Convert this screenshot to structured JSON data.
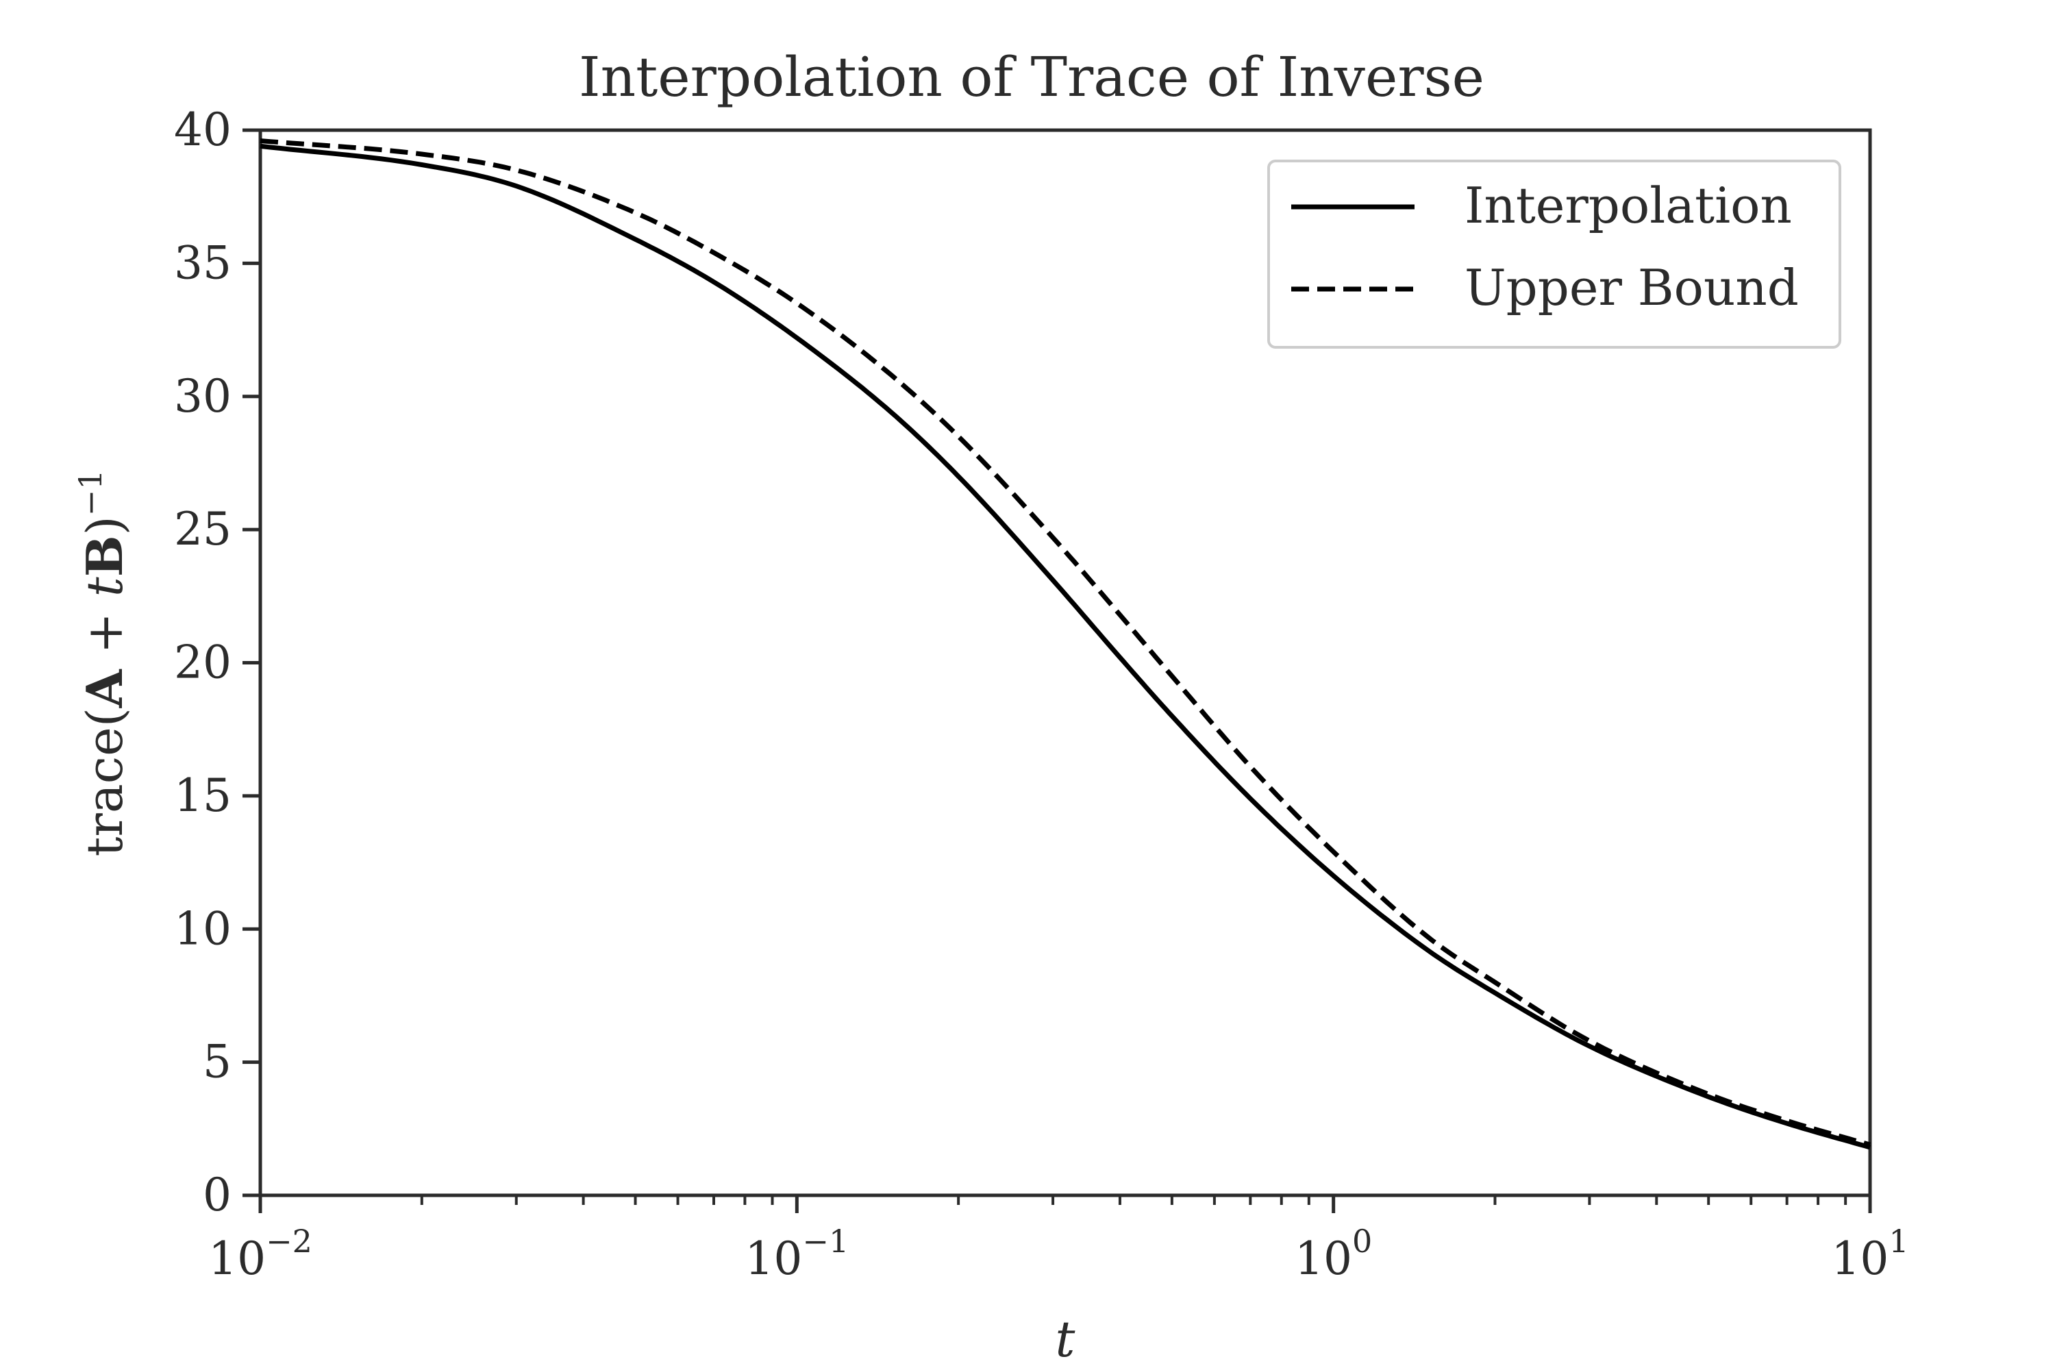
{
  "chart_data": {
    "type": "line",
    "title": "Interpolation of Trace of Inverse",
    "xlabel": "t",
    "ylabel": {
      "prefix": "trace(",
      "A": "A",
      "plus": " + ",
      "t": "t",
      "B": "B",
      "suffix": ")",
      "exp": "−1"
    },
    "xscale": "log",
    "xlim": [
      0.01,
      10
    ],
    "ylim": [
      0,
      40
    ],
    "xticks": [
      {
        "base": "10",
        "exp": "−2",
        "value": 0.01
      },
      {
        "base": "10",
        "exp": "−1",
        "value": 0.1
      },
      {
        "base": "10",
        "exp": "0",
        "value": 1
      },
      {
        "base": "10",
        "exp": "1",
        "value": 10
      }
    ],
    "yticks": [
      "0",
      "5",
      "10",
      "15",
      "20",
      "25",
      "30",
      "35",
      "40"
    ],
    "grid": false,
    "legend_position": "top-right",
    "x": [
      0.01,
      0.02,
      0.03,
      0.05,
      0.07,
      0.1,
      0.15,
      0.2,
      0.3,
      0.4,
      0.5,
      0.7,
      1,
      1.5,
      2,
      3,
      5,
      7,
      10
    ],
    "series": [
      {
        "name": "Interpolation",
        "style": "solid",
        "color": "#000000",
        "values": [
          39.4,
          38.7,
          37.9,
          35.9,
          34.3,
          32.2,
          29.4,
          27.0,
          23.1,
          20.2,
          18.0,
          14.9,
          12.0,
          9.2,
          7.6,
          5.6,
          3.7,
          2.7,
          1.8
        ]
      },
      {
        "name": "Upper Bound",
        "style": "dashed",
        "color": "#000000",
        "values": [
          39.6,
          39.1,
          38.5,
          36.9,
          35.4,
          33.5,
          30.8,
          28.5,
          24.7,
          21.8,
          19.5,
          16.1,
          12.9,
          9.7,
          8.0,
          5.8,
          3.8,
          2.8,
          1.9
        ]
      }
    ]
  }
}
